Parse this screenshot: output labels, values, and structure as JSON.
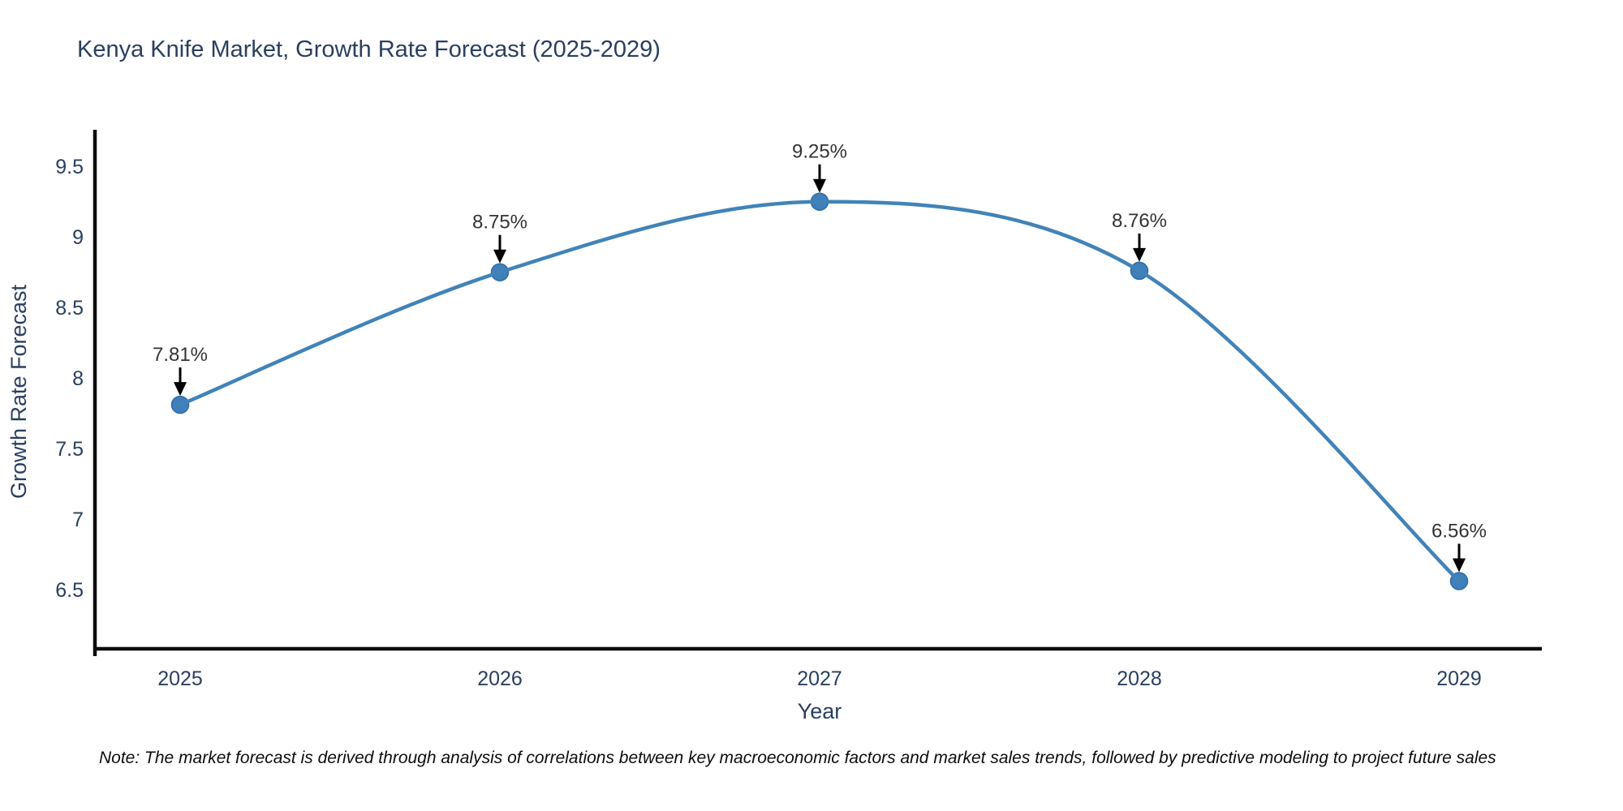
{
  "header": {
    "title": "Kenya Knife Market, Growth Rate Forecast (2025-2029)"
  },
  "footer": {
    "note": "Note: The market forecast is derived through analysis of correlations between key macroeconomic factors and market sales trends, followed by predictive modeling to project future sales"
  },
  "colors": {
    "background": "#ffffff",
    "line": "#4183b8",
    "marker_fill": "#3f7fba",
    "marker_border": "#2e6da6",
    "axis_line": "#0d0d0d",
    "title_text": "#2a3f5f",
    "tick_text": "#2a3f5f",
    "annotation_text": "#333333",
    "arrow": "#000000"
  },
  "chart_data": {
    "type": "line",
    "title": "Kenya Knife Market, Growth Rate Forecast (2025-2029)",
    "xlabel": "Year",
    "ylabel": "Growth Rate Forecast",
    "x": [
      2025,
      2026,
      2027,
      2028,
      2029
    ],
    "values": [
      7.81,
      8.75,
      9.25,
      8.76,
      6.56
    ],
    "point_labels": [
      "7.81%",
      "8.75%",
      "9.25%",
      "8.76%",
      "6.56%"
    ],
    "yticks": [
      6.5,
      7,
      7.5,
      8,
      8.5,
      9,
      9.5
    ],
    "ylim": [
      6.08,
      9.76
    ],
    "line_shape": "spline",
    "grid": false,
    "legend": "none",
    "annotation_style": "value label with downward black arrow above each point",
    "marker": "circle"
  }
}
